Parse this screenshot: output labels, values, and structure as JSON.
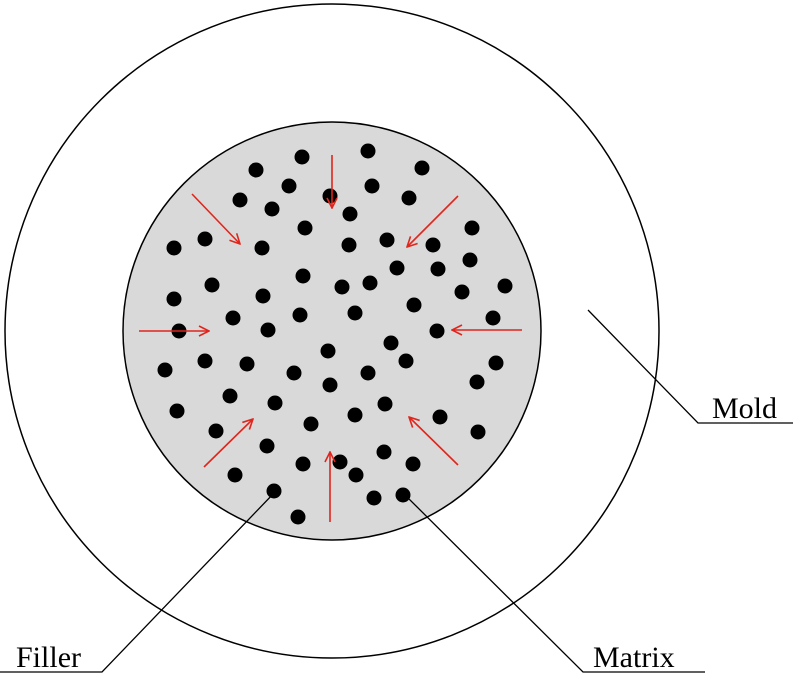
{
  "labels": {
    "mold": "Mold",
    "filler": "Filler",
    "matrix": "Matrix"
  },
  "colors": {
    "outline": "#000000",
    "matrix_fill": "#d9d9d9",
    "particle": "#000000",
    "arrow": "#e0261c",
    "background": "#ffffff"
  }
}
